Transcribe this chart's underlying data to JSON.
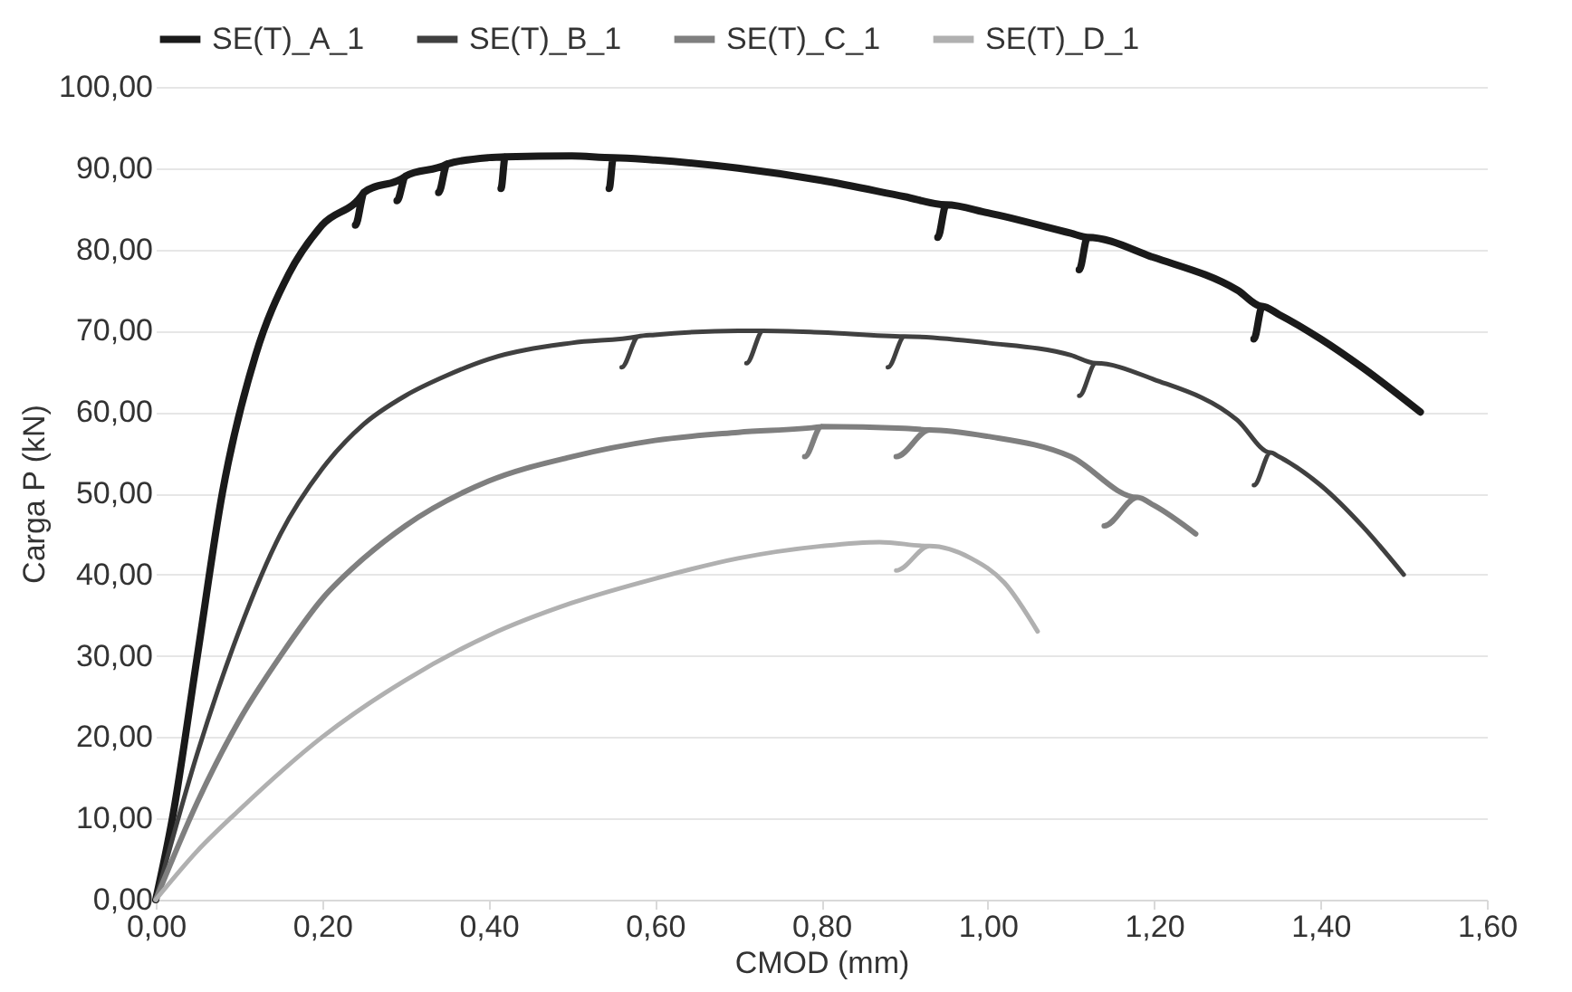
{
  "chart_data": {
    "type": "line",
    "xlabel": "CMOD (mm)",
    "ylabel": "Carga P (kN)",
    "legend": "top",
    "grid": "y",
    "marker": "none",
    "line_style": "solid",
    "xlim": [
      0,
      1.6
    ],
    "xticks": [
      {
        "value": 0,
        "label": "0,00"
      },
      {
        "value": 0.2,
        "label": "0,20"
      },
      {
        "value": 0.4,
        "label": "0,40"
      },
      {
        "value": 0.6,
        "label": "0,60"
      },
      {
        "value": 0.8,
        "label": "0,80"
      },
      {
        "value": 1.0,
        "label": "1,00"
      },
      {
        "value": 1.2,
        "label": "1,20"
      },
      {
        "value": 1.4,
        "label": "1,40"
      },
      {
        "value": 1.6,
        "label": "1,60"
      }
    ],
    "ylim": [
      0,
      100
    ],
    "yticks": [
      {
        "value": 0,
        "label": "0,00"
      },
      {
        "value": 10,
        "label": "10,00"
      },
      {
        "value": 20,
        "label": "20,00"
      },
      {
        "value": 30,
        "label": "30,00"
      },
      {
        "value": 40,
        "label": "40,00"
      },
      {
        "value": 50,
        "label": "50,00"
      },
      {
        "value": 60,
        "label": "60,00"
      },
      {
        "value": 70,
        "label": "70,00"
      },
      {
        "value": 80,
        "label": "80,00"
      },
      {
        "value": 90,
        "label": "90,00"
      },
      {
        "value": 100,
        "label": "100,00"
      }
    ],
    "series": [
      {
        "name": "SE(T)_A_1",
        "color": "#1a1a1a",
        "x": [
          0,
          0.02,
          0.05,
          0.08,
          0.12,
          0.16,
          0.2,
          0.25,
          0.24,
          0.25,
          0.3,
          0.29,
          0.3,
          0.35,
          0.34,
          0.35,
          0.4,
          0.42,
          0.415,
          0.42,
          0.5,
          0.55,
          0.545,
          0.55,
          0.6,
          0.7,
          0.8,
          0.9,
          0.95,
          0.94,
          0.95,
          1.0,
          1.1,
          1.12,
          1.11,
          1.12,
          1.2,
          1.3,
          1.33,
          1.32,
          1.33,
          1.35,
          1.4,
          1.45,
          1.52
        ],
        "values": [
          0,
          10,
          30,
          50,
          67,
          77,
          83,
          87,
          83,
          87,
          89,
          86,
          89,
          90.5,
          87,
          90.5,
          91.3,
          91.4,
          87.5,
          91.4,
          91.5,
          91.3,
          87.5,
          91.3,
          91,
          90,
          88.5,
          86.5,
          85.5,
          81.5,
          85.5,
          84.5,
          82,
          81.5,
          77.5,
          81.5,
          79,
          75,
          73,
          69,
          73,
          72,
          69,
          65.5,
          60
        ]
      },
      {
        "name": "SE(T)_B_1",
        "color": "#404040",
        "x": [
          0,
          0.05,
          0.1,
          0.15,
          0.2,
          0.25,
          0.3,
          0.35,
          0.4,
          0.5,
          0.58,
          0.56,
          0.58,
          0.6,
          0.7,
          0.73,
          0.71,
          0.73,
          0.8,
          0.9,
          0.88,
          0.9,
          1.0,
          1.1,
          1.13,
          1.11,
          1.13,
          1.2,
          1.3,
          1.34,
          1.32,
          1.34,
          1.35,
          1.4,
          1.45,
          1.5
        ],
        "values": [
          0,
          18,
          33,
          45,
          53,
          58.5,
          62,
          64.5,
          66.5,
          68.5,
          69.3,
          65.5,
          69.3,
          69.5,
          70,
          70,
          66,
          70,
          69.8,
          69.3,
          65.5,
          69.3,
          68.5,
          67,
          66,
          62,
          66,
          64,
          59,
          55,
          51,
          55,
          54.5,
          51,
          46,
          40
        ]
      },
      {
        "name": "SE(T)_C_1",
        "color": "#7f7f7f",
        "x": [
          0,
          0.05,
          0.1,
          0.15,
          0.2,
          0.25,
          0.3,
          0.4,
          0.5,
          0.6,
          0.7,
          0.8,
          0.78,
          0.8,
          0.9,
          0.93,
          0.89,
          0.93,
          1.0,
          1.1,
          1.18,
          1.14,
          1.18,
          1.2,
          1.25
        ],
        "values": [
          0,
          12,
          22,
          30,
          37,
          42,
          46,
          51.5,
          54.5,
          56.5,
          57.5,
          58.2,
          54.5,
          58.2,
          58,
          57.8,
          54.5,
          57.8,
          57,
          54.5,
          49.5,
          46,
          49.5,
          48.5,
          45
        ]
      },
      {
        "name": "SE(T)_D_1",
        "color": "#b0b0b0",
        "x": [
          0,
          0.05,
          0.1,
          0.2,
          0.3,
          0.4,
          0.5,
          0.6,
          0.7,
          0.8,
          0.87,
          0.93,
          0.89,
          0.93,
          0.98,
          1.02,
          1.06
        ],
        "values": [
          0,
          6,
          11,
          20,
          27,
          32.5,
          36.5,
          39.5,
          42,
          43.5,
          44,
          43.5,
          40.5,
          43.5,
          42,
          39,
          33
        ]
      }
    ]
  }
}
